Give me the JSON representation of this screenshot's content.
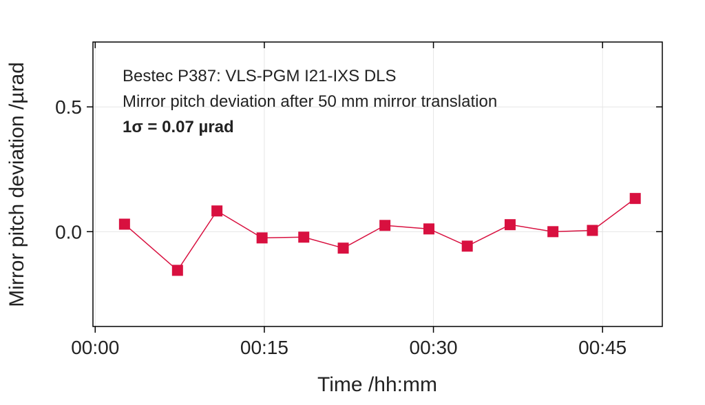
{
  "chart_data": {
    "type": "line",
    "x_label": "Time /hh:mm",
    "y_label": "Mirror pitch deviation /µrad",
    "annotations": [
      "Bestec P387: VLS-PGM I21-IXS DLS",
      "Mirror pitch deviation after 50 mm mirror translation",
      "1σ = 0.07 µrad"
    ],
    "x": [
      2.6,
      7.3,
      10.8,
      14.8,
      18.5,
      22.0,
      25.7,
      29.6,
      33.0,
      36.8,
      40.6,
      44.1,
      47.9
    ],
    "series": [
      {
        "name": "Mirror pitch deviation",
        "color": "#d8103f",
        "values": [
          0.03,
          -0.155,
          0.083,
          -0.025,
          -0.022,
          -0.066,
          0.025,
          0.011,
          -0.058,
          0.028,
          0.0,
          0.005,
          0.133
        ]
      }
    ],
    "xlim": [
      -0.2,
      50.3
    ],
    "ylim": [
      -0.38,
      0.76
    ],
    "xticks": [
      {
        "value": 0,
        "label": "00:00"
      },
      {
        "value": 15,
        "label": "00:15"
      },
      {
        "value": 30,
        "label": "00:30"
      },
      {
        "value": 45,
        "label": "00:45"
      }
    ],
    "yticks": [
      {
        "value": 0.0,
        "label": "0.0"
      },
      0.5
    ],
    "grid": true
  }
}
